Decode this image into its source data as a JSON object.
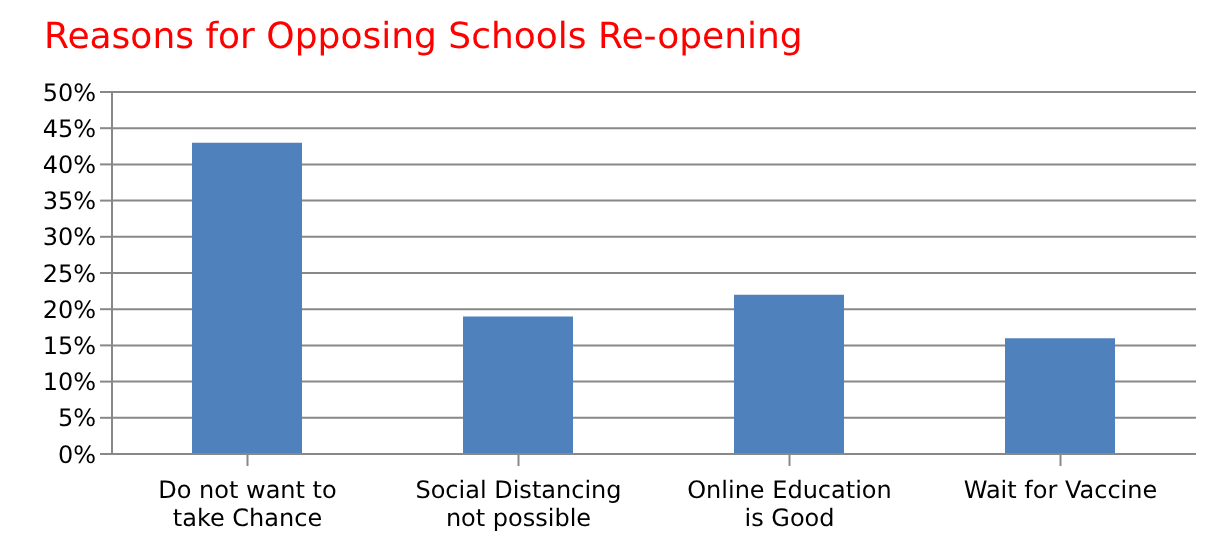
{
  "chart_data": {
    "type": "bar",
    "title": "Reasons for Opposing Schools Re-opening",
    "categories": [
      "Do not want to take Chance",
      "Social Distancing not possible",
      "Online Education is Good",
      "Wait for Vaccine"
    ],
    "values": [
      43,
      19,
      22,
      16
    ],
    "color": "#4f81bd",
    "ylim": [
      0,
      50
    ],
    "yticks": [
      {
        "value": 0,
        "label": "0%"
      },
      {
        "value": 5,
        "label": "5%"
      },
      {
        "value": 10,
        "label": "10%"
      },
      {
        "value": 15,
        "label": "15%"
      },
      {
        "value": 20,
        "label": "20%"
      },
      {
        "value": 25,
        "label": "25%"
      },
      {
        "value": 30,
        "label": "30%"
      },
      {
        "value": 35,
        "label": "35%"
      },
      {
        "value": 40,
        "label": "40%"
      },
      {
        "value": 45,
        "label": "45%"
      },
      {
        "value": 50,
        "label": "50%"
      }
    ],
    "grid": "y",
    "legend": false
  }
}
